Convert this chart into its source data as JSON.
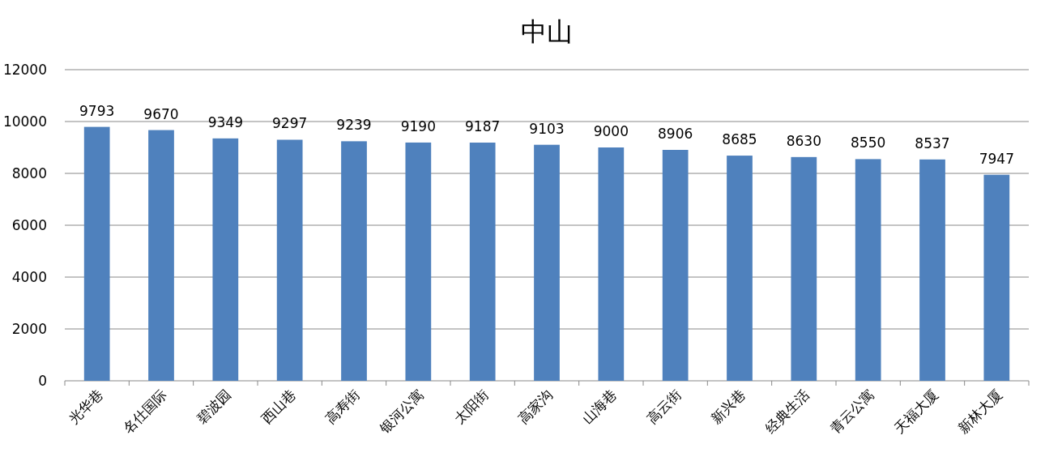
{
  "chart_data": {
    "type": "bar",
    "title": "中山",
    "categories": [
      "光华巷",
      "名仕国际",
      "碧波园",
      "西山巷",
      "高寿街",
      "银河公寓",
      "太阳街",
      "高家沟",
      "山海巷",
      "高云街",
      "新兴巷",
      "经典生活",
      "青云公寓",
      "天福大厦",
      "新林大厦"
    ],
    "values": [
      9793,
      9670,
      9349,
      9297,
      9239,
      9190,
      9187,
      9103,
      9000,
      8906,
      8685,
      8630,
      8550,
      8537,
      7947
    ],
    "color": "#4f81bd",
    "ylim": [
      0,
      12000
    ],
    "yticks": [
      0,
      2000,
      4000,
      6000,
      8000,
      10000,
      12000
    ],
    "grid": "y",
    "data_labels": true
  }
}
